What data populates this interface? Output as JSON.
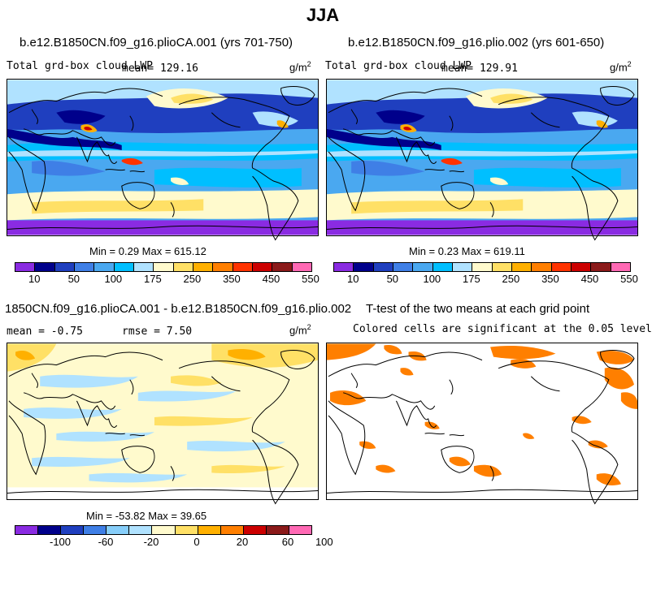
{
  "season": "JJA",
  "panels": {
    "p1": {
      "title": "b.e12.B1850CN.f09_g16.plioCA.001 (yrs 701-750)",
      "variable": "Total grd-box cloud LWP",
      "mean": "mean= 129.16",
      "units": "g/m",
      "units_exp": "2",
      "minmax": "Min =   0.29 Max = 615.12"
    },
    "p2": {
      "title": "b.e12.B1850CN.f09_g16.plio.002 (yrs 601-650)",
      "variable": "Total grd-box cloud LWP",
      "mean": "mean= 129.91",
      "units": "g/m",
      "units_exp": "2",
      "minmax": "Min =   0.23 Max = 619.11"
    },
    "p3": {
      "title": "1850CN.f09_g16.plioCA.001 - b.e12.B1850CN.f09_g16.plio.002",
      "mean": "mean =  -0.75",
      "rmse": "rmse =   7.50",
      "units": "g/m",
      "units_exp": "2",
      "minmax": "Min = -53.82 Max =  39.65"
    },
    "p4": {
      "title": "T-test of the two means at each grid point",
      "subtitle": "Colored cells are significant at the 0.05 level"
    }
  },
  "colorbars": {
    "abs": {
      "colors": [
        "#8a2be2",
        "#00008b",
        "#1f3fbf",
        "#3f7fe6",
        "#4aa8f0",
        "#00bfff",
        "#b0e2ff",
        "#fffacd",
        "#ffe066",
        "#ffb000",
        "#ff7f00",
        "#ff3300",
        "#cc0000",
        "#8b1a1a",
        "#ff69b4"
      ],
      "ticks": [
        "10",
        "50",
        "100",
        "175",
        "250",
        "350",
        "450",
        "550"
      ]
    },
    "diff": {
      "colors": [
        "#8a2be2",
        "#00008b",
        "#1f3fbf",
        "#3f7fe6",
        "#87cefa",
        "#b0e2ff",
        "#fffacd",
        "#ffe066",
        "#ffb000",
        "#ff7f00",
        "#cc0000",
        "#8b1a1a",
        "#ff69b4"
      ],
      "ticks": [
        "-100",
        "-60",
        "-20",
        "0",
        "20",
        "60",
        "100"
      ]
    }
  },
  "chart_data": [
    {
      "type": "heatmap",
      "title": "b.e12.B1850CN.f09_g16.plioCA.001 (yrs 701-750)",
      "variable": "Total grd-box cloud LWP",
      "units": "g/m2",
      "mean": 129.16,
      "min": 0.29,
      "max": 615.12,
      "contour_levels": [
        10,
        25,
        50,
        75,
        100,
        125,
        150,
        175,
        200,
        250,
        300,
        350,
        400,
        450,
        500,
        550
      ]
    },
    {
      "type": "heatmap",
      "title": "b.e12.B1850CN.f09_g16.plio.002 (yrs 601-650)",
      "variable": "Total grd-box cloud LWP",
      "units": "g/m2",
      "mean": 129.91,
      "min": 0.23,
      "max": 619.11,
      "contour_levels": [
        10,
        25,
        50,
        75,
        100,
        125,
        150,
        175,
        200,
        250,
        300,
        350,
        400,
        450,
        500,
        550
      ]
    },
    {
      "type": "heatmap",
      "title": "1850CN.f09_g16.plioCA.001 - b.e12.B1850CN.f09_g16.plio.002",
      "units": "g/m2",
      "mean": -0.75,
      "rmse": 7.5,
      "min": -53.82,
      "max": 39.65,
      "contour_levels": [
        -100,
        -80,
        -60,
        -40,
        -20,
        -10,
        0,
        10,
        20,
        40,
        60,
        80,
        100
      ]
    },
    {
      "type": "heatmap",
      "title": "T-test of the two means at each grid point",
      "subtitle": "Colored cells are significant at the 0.05 level",
      "significance_level": 0.05
    }
  ]
}
